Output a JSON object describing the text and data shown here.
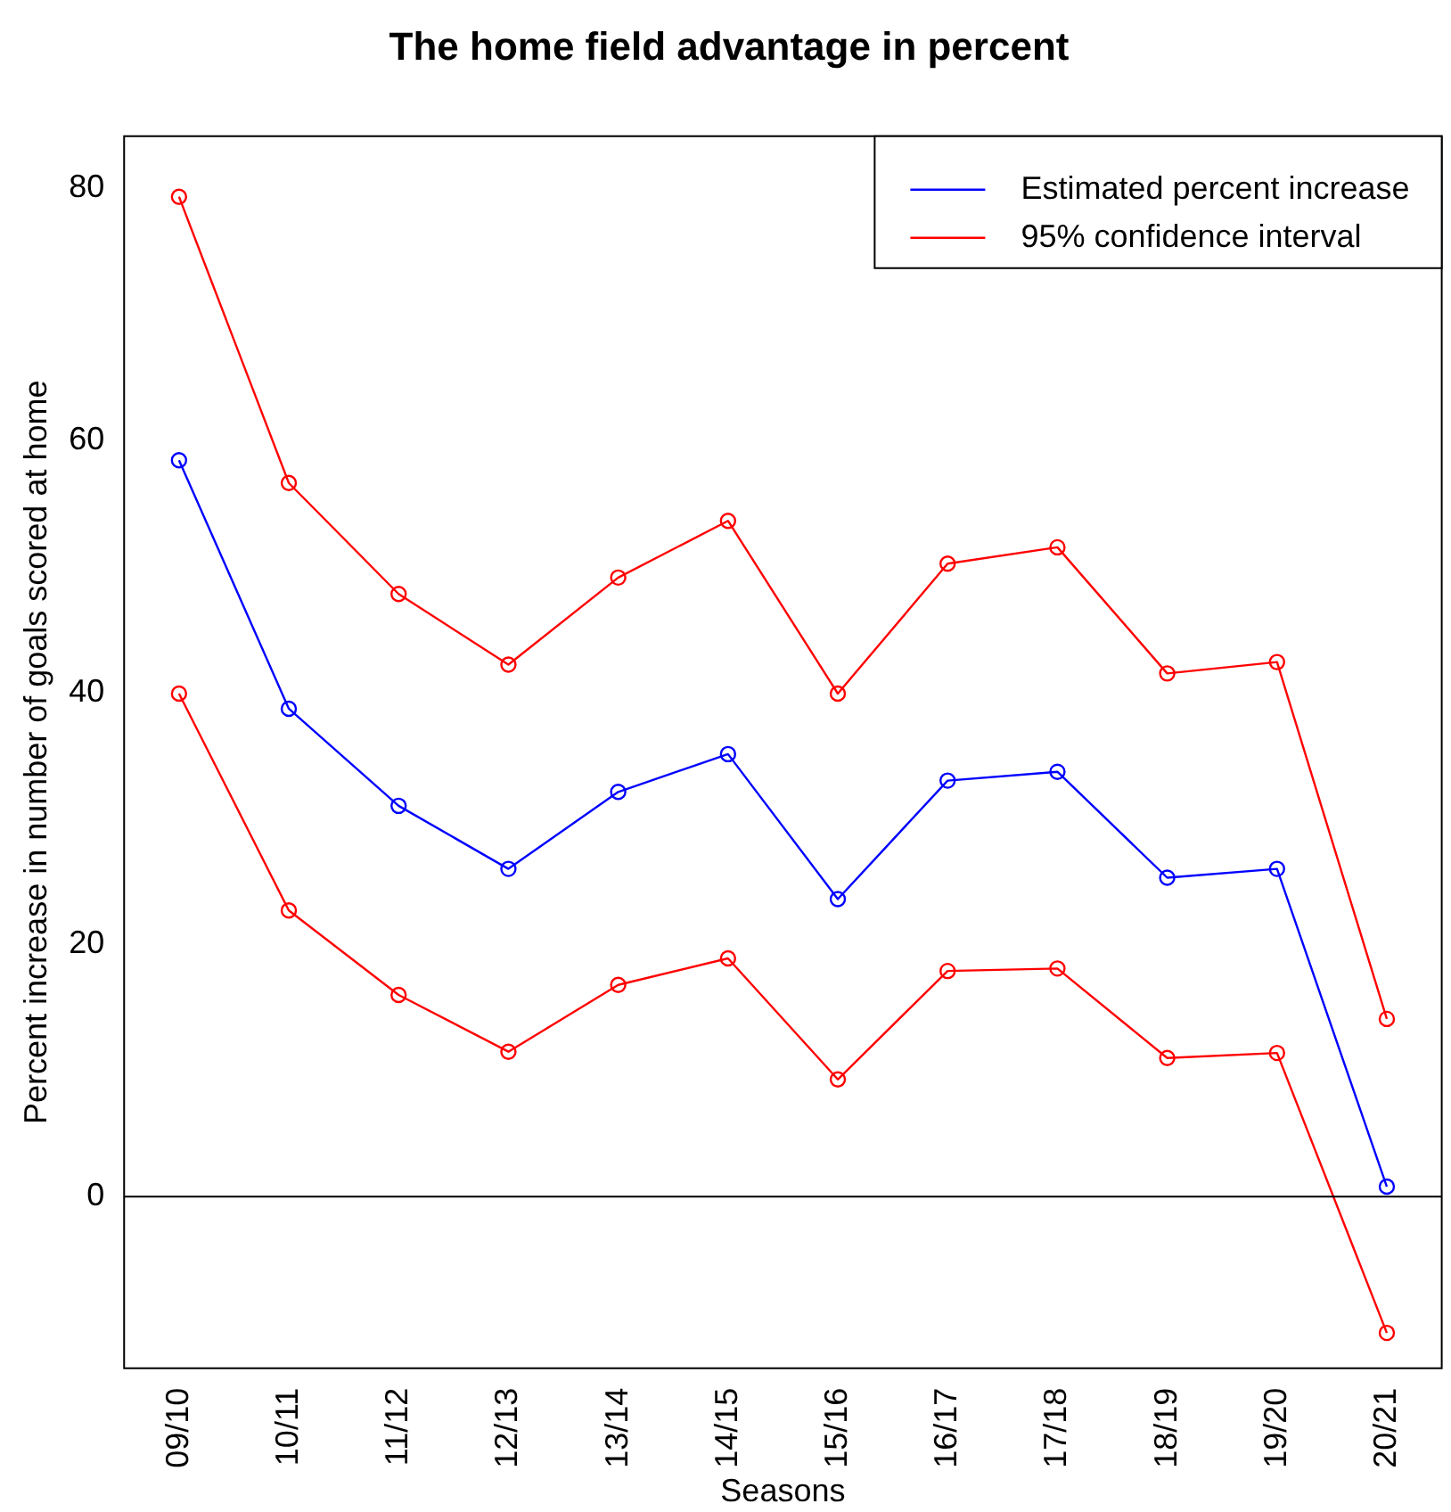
{
  "chart_data": {
    "type": "line",
    "title": "The home field advantage in percent",
    "xlabel": "Seasons",
    "ylabel": "Percent increase in number of goals scored at home",
    "categories": [
      "09/10",
      "10/11",
      "11/12",
      "12/13",
      "13/14",
      "14/15",
      "15/16",
      "16/17",
      "17/18",
      "18/19",
      "19/20",
      "20/21"
    ],
    "series": [
      {
        "name": "Estimated percent increase",
        "color": "#0000ff",
        "values": [
          58.4,
          38.7,
          31.0,
          26.0,
          32.1,
          35.1,
          23.6,
          33.0,
          33.7,
          25.3,
          26.0,
          0.8
        ]
      },
      {
        "name": "95% confidence interval",
        "color": "#ff0000",
        "values": [
          79.3,
          56.6,
          47.8,
          42.2,
          49.1,
          53.6,
          39.9,
          50.2,
          51.5,
          41.5,
          42.4,
          14.1
        ]
      },
      {
        "color": "#ff0000",
        "values": [
          39.9,
          22.7,
          16.0,
          11.5,
          16.8,
          18.9,
          9.3,
          17.9,
          18.1,
          11.0,
          11.4,
          -10.8
        ]
      }
    ],
    "ylim": [
      -13.6,
      84.1
    ],
    "yticks": [
      0,
      20,
      40,
      60,
      80
    ],
    "ref_lines": [
      {
        "axis": "y",
        "value": 0,
        "color": "#000000"
      }
    ],
    "grid": false,
    "legend": "top right",
    "marker": "circle",
    "line_style": "solid"
  }
}
